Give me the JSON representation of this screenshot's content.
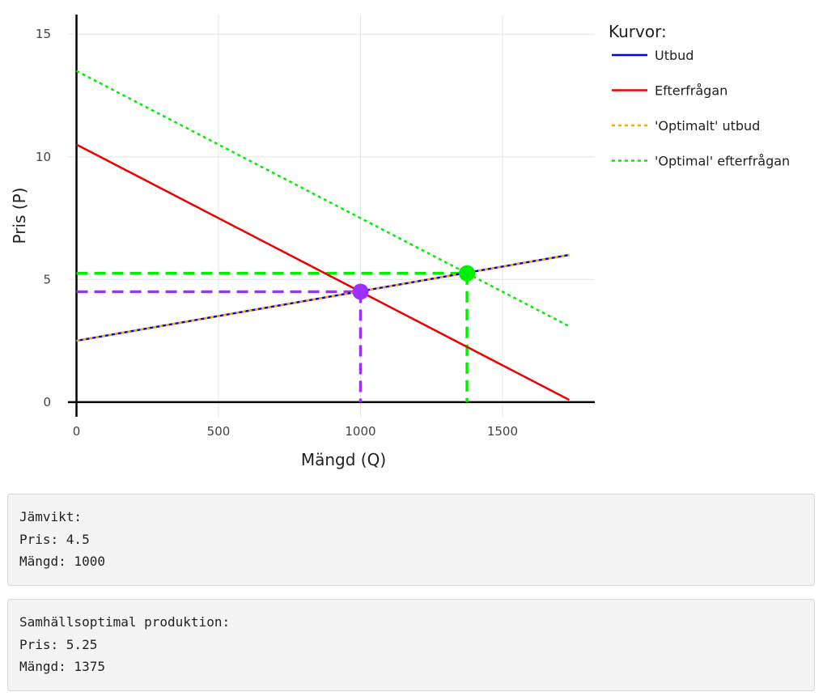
{
  "chart_data": {
    "type": "line",
    "xlabel": "Mängd (Q)",
    "ylabel": "Pris (P)",
    "xlim": [
      -30,
      1825
    ],
    "ylim": [
      -0.6,
      15.8
    ],
    "x_ticks": [
      0,
      500,
      1000,
      1500
    ],
    "x_tick_labels": [
      "0",
      "500",
      "1000",
      "1500"
    ],
    "y_ticks": [
      0,
      5,
      10,
      15
    ],
    "y_tick_labels": [
      "0",
      "5",
      "10",
      "15"
    ],
    "grid": true,
    "legend_title": "Kurvor:",
    "legend_position": "right",
    "series": [
      {
        "name": "Utbud",
        "style": "solid",
        "color": "#0000ee",
        "x": [
          0,
          1735
        ],
        "y": [
          2.5,
          6.0
        ]
      },
      {
        "name": "Efterfrågan",
        "style": "solid",
        "color": "#ee0000",
        "x": [
          0,
          1735
        ],
        "y": [
          10.5,
          0.09
        ]
      },
      {
        "name": "'Optimalt' utbud",
        "style": "dotted",
        "color": "#ffa500",
        "x": [
          0,
          1735
        ],
        "y": [
          2.5,
          6.0
        ]
      },
      {
        "name": "'Optimal' efterfrågan",
        "style": "dotted",
        "color": "#00ee00",
        "x": [
          0,
          1735
        ],
        "y": [
          13.5,
          3.09
        ]
      }
    ],
    "guides": [
      {
        "color": "#9b30ff",
        "x": 1000,
        "y": 4.5
      },
      {
        "color": "#00ee00",
        "x": 1375,
        "y": 5.25
      }
    ],
    "points": [
      {
        "color": "#9b30ff",
        "x": 1000,
        "y": 4.5
      },
      {
        "color": "#00ee00",
        "x": 1375,
        "y": 5.25
      }
    ]
  },
  "equilibrium": {
    "heading": "Jämvikt:",
    "price_line": "Pris: 4.5",
    "quantity_line": "Mängd: 1000"
  },
  "optimal": {
    "heading": "Samhällsoptimal produktion:",
    "price_line": "Pris: 5.25",
    "quantity_line": "Mängd: 1375"
  }
}
